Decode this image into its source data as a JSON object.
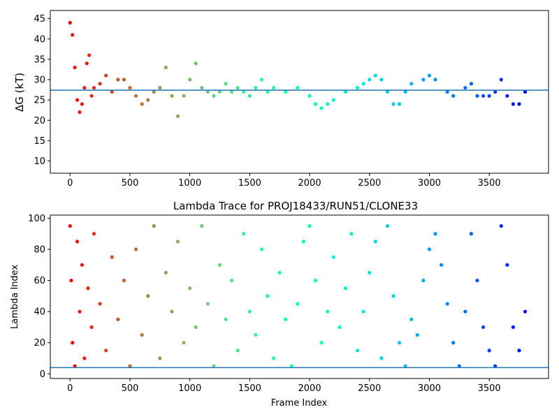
{
  "chart_data": [
    {
      "type": "scatter",
      "title": "",
      "xlabel": "",
      "ylabel": "ΔG (kT)",
      "xlim": [
        -165,
        3995
      ],
      "ylim": [
        7,
        47
      ],
      "xticks": [
        0,
        500,
        1000,
        1500,
        2000,
        2500,
        3000,
        3500
      ],
      "yticks": [
        10,
        15,
        20,
        25,
        30,
        35,
        40,
        45
      ],
      "reference_line": {
        "y": 27.4,
        "color": "#1f77b4"
      },
      "colormap": "rainbow (reversed)",
      "grid": false,
      "series": [
        {
          "x": [
            0,
            20,
            40,
            60,
            80,
            100,
            120,
            140,
            160,
            180,
            200,
            250,
            300,
            350,
            400,
            450,
            500,
            550,
            600,
            650,
            700,
            750,
            800,
            850,
            900,
            950,
            1000,
            1050,
            1100,
            1150,
            1200,
            1250,
            1300,
            1350,
            1400,
            1450,
            1500,
            1550,
            1600,
            1650,
            1700,
            1800,
            1900,
            2000,
            2050,
            2100,
            2150,
            2200,
            2300,
            2400,
            2450,
            2500,
            2550,
            2600,
            2650,
            2700,
            2750,
            2800,
            2850,
            2950,
            3000,
            3050,
            3150,
            3200,
            3300,
            3350,
            3400,
            3450,
            3500,
            3550,
            3600,
            3650,
            3700,
            3750,
            3800
          ],
          "y": [
            44,
            41,
            33,
            25,
            22,
            24,
            28,
            34,
            36,
            26,
            28,
            29,
            31,
            27,
            30,
            30,
            28,
            26,
            24,
            25,
            27,
            28,
            33,
            26,
            21,
            26,
            30,
            34,
            28,
            27,
            26,
            27,
            29,
            27,
            28,
            27,
            26,
            28,
            30,
            27,
            28,
            27,
            28,
            26,
            24,
            23,
            24,
            25,
            27,
            28,
            29,
            30,
            31,
            30,
            27,
            24,
            24,
            27,
            29,
            30,
            31,
            30,
            27,
            26,
            28,
            29,
            26,
            26,
            26,
            27,
            30,
            26,
            24,
            24,
            27
          ]
        }
      ]
    },
    {
      "type": "scatter",
      "title": "Lambda Trace for PROJ18433/RUN51/CLONE33",
      "xlabel": "Frame Index",
      "ylabel": "Lambda Index",
      "xlim": [
        -165,
        3995
      ],
      "ylim": [
        -3,
        102
      ],
      "xticks": [
        0,
        500,
        1000,
        1500,
        2000,
        2500,
        3000,
        3500
      ],
      "yticks": [
        0,
        20,
        40,
        60,
        80,
        100
      ],
      "reference_line": {
        "y": 4,
        "color": "#1f77b4"
      },
      "colormap": "rainbow (reversed)",
      "grid": false,
      "series": [
        {
          "x": [
            0,
            10,
            20,
            40,
            60,
            80,
            100,
            120,
            150,
            180,
            200,
            250,
            300,
            350,
            400,
            450,
            500,
            550,
            600,
            650,
            700,
            750,
            800,
            850,
            900,
            950,
            1000,
            1050,
            1100,
            1150,
            1200,
            1250,
            1300,
            1350,
            1400,
            1450,
            1500,
            1550,
            1600,
            1650,
            1700,
            1750,
            1800,
            1850,
            1900,
            1950,
            2000,
            2050,
            2100,
            2150,
            2200,
            2250,
            2300,
            2350,
            2400,
            2450,
            2500,
            2550,
            2600,
            2650,
            2700,
            2750,
            2800,
            2850,
            2900,
            2950,
            3000,
            3050,
            3100,
            3150,
            3200,
            3250,
            3300,
            3350,
            3400,
            3450,
            3500,
            3550,
            3600,
            3650,
            3700,
            3750,
            3800
          ],
          "y": [
            95,
            60,
            20,
            5,
            85,
            40,
            70,
            10,
            55,
            30,
            90,
            45,
            15,
            75,
            35,
            60,
            5,
            80,
            25,
            50,
            95,
            10,
            65,
            40,
            85,
            20,
            55,
            30,
            95,
            45,
            5,
            70,
            35,
            60,
            15,
            90,
            40,
            25,
            80,
            50,
            10,
            65,
            35,
            5,
            45,
            85,
            95,
            60,
            20,
            40,
            75,
            30,
            55,
            90,
            15,
            40,
            65,
            85,
            10,
            95,
            50,
            20,
            5,
            35,
            25,
            60,
            80,
            90,
            70,
            45,
            20,
            5,
            40,
            90,
            60,
            30,
            15,
            5,
            95,
            70,
            30,
            15,
            40
          ]
        }
      ]
    }
  ]
}
